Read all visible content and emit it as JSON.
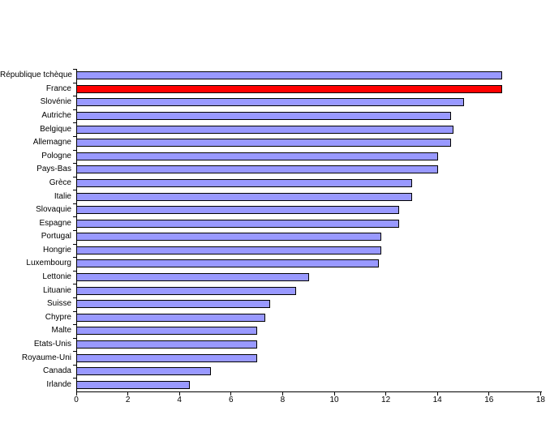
{
  "chart_data": {
    "type": "bar",
    "orientation": "horizontal",
    "title": "",
    "xlabel": "",
    "ylabel": "",
    "categories": [
      "République tchèque",
      "France",
      "Slovénie",
      "Autriche",
      "Belgique",
      "Allemagne",
      "Pologne",
      "Pays-Bas",
      "Grèce",
      "Italie",
      "Slovaquie",
      "Espagne",
      "Portugal",
      "Hongrie",
      "Luxembourg",
      "Lettonie",
      "Lituanie",
      "Suisse",
      "Chypre",
      "Malte",
      "Etats-Unis",
      "Royaume-Uni",
      "Canada",
      "Irlande"
    ],
    "values": [
      16.5,
      16.5,
      15.0,
      14.5,
      14.6,
      14.5,
      14.0,
      14.0,
      13.0,
      13.0,
      12.5,
      12.5,
      11.8,
      11.8,
      11.7,
      9.0,
      8.5,
      7.5,
      7.3,
      7.0,
      7.0,
      7.0,
      5.2,
      4.4
    ],
    "highlight": {
      "category": "France",
      "color": "#ff0000"
    },
    "bar_color": "#9999ff",
    "bar_border_color": "#000000",
    "axis_color": "#000000",
    "background_color": "#ffffff",
    "xlim": [
      0,
      18
    ],
    "x_ticks": [
      0,
      2,
      4,
      6,
      8,
      10,
      12,
      14,
      16,
      18
    ],
    "grid": false,
    "legend": false
  }
}
